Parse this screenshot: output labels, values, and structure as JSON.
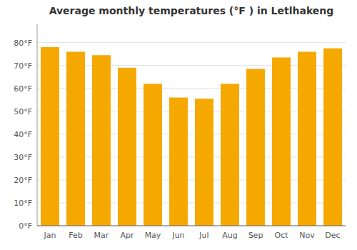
{
  "chart_data": {
    "type": "bar",
    "title": "Average monthly temperatures (°F ) in Letlhakeng",
    "categories": [
      "Jan",
      "Feb",
      "Mar",
      "Apr",
      "May",
      "Jun",
      "Jul",
      "Aug",
      "Sep",
      "Oct",
      "Nov",
      "Dec"
    ],
    "values": [
      78,
      76,
      74.5,
      69,
      62,
      56,
      55.5,
      62,
      68.5,
      73.5,
      76,
      77.5
    ],
    "color": "#F5A800",
    "ylim": [
      0,
      88
    ],
    "yticks": [
      {
        "value": 0,
        "label": "0°F"
      },
      {
        "value": 10,
        "label": "10°F"
      },
      {
        "value": 20,
        "label": "20°F"
      },
      {
        "value": 30,
        "label": "30°F"
      },
      {
        "value": 40,
        "label": "40°F"
      },
      {
        "value": 50,
        "label": "50°F"
      },
      {
        "value": 60,
        "label": "60°F"
      },
      {
        "value": 70,
        "label": "70°F"
      },
      {
        "value": 80,
        "label": "80°F"
      }
    ],
    "grid": true
  }
}
